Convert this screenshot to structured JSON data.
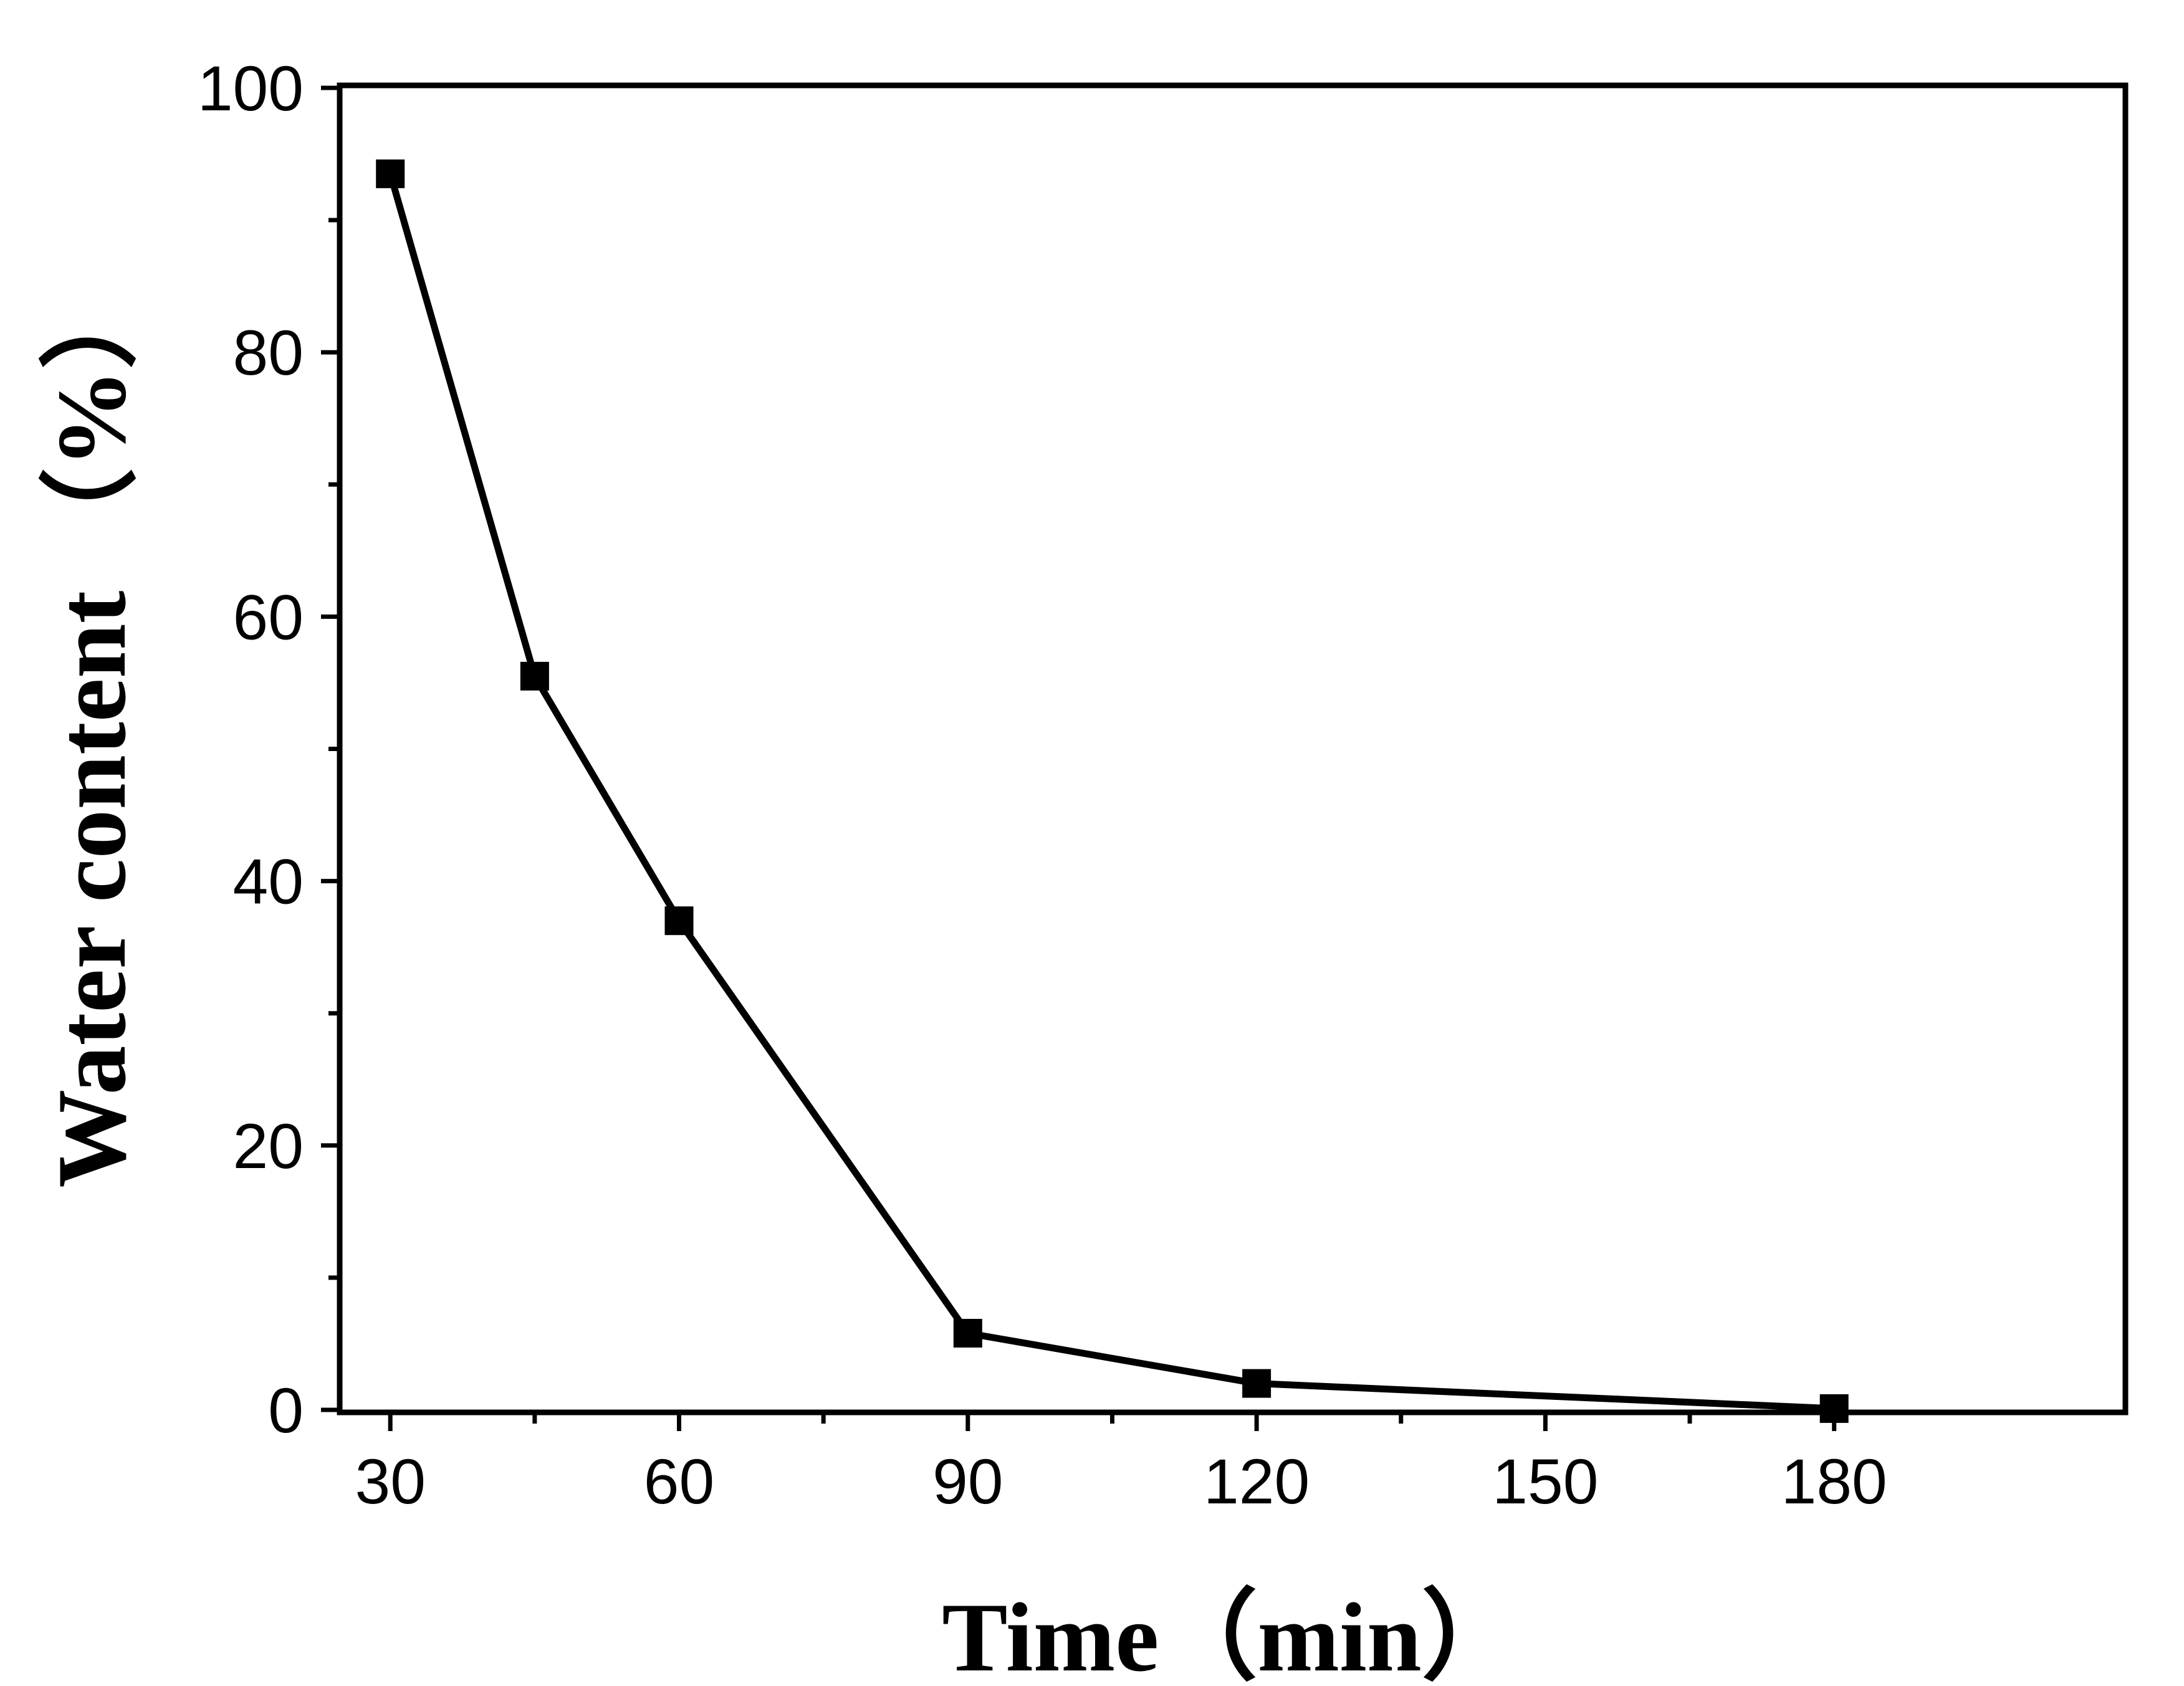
{
  "chart_data": {
    "type": "line",
    "title": "",
    "xlabel": "Time（min）",
    "ylabel": "Water content （%）",
    "x": [
      30,
      45,
      60,
      90,
      120,
      180
    ],
    "series": [
      {
        "values": [
          93.5,
          55.5,
          37,
          5.8,
          2,
          0.1
        ],
        "marker": "square"
      }
    ],
    "xlim": [
      25,
      210
    ],
    "ylim": [
      0,
      100
    ],
    "xticks": [
      30,
      60,
      90,
      120,
      150,
      180
    ],
    "yticks": [
      0,
      20,
      40,
      60,
      80,
      100
    ],
    "grid": false,
    "legend": "none",
    "colors": {
      "line": "#000000",
      "marker": "#000000",
      "axis": "#000000",
      "background": "#ffffff"
    }
  }
}
